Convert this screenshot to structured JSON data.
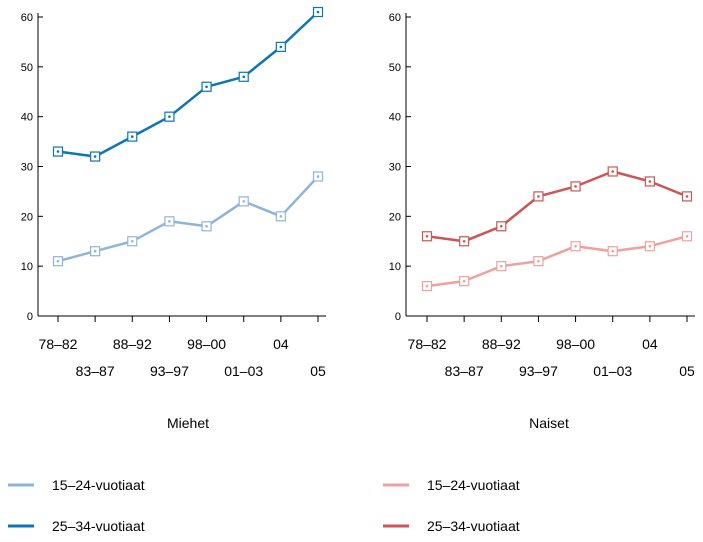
{
  "chart_data": [
    {
      "type": "line",
      "xlabel": "Miehet",
      "categories": [
        "78–82",
        "83–87",
        "88–92",
        "93–97",
        "98–00",
        "01–03",
        "04",
        "05"
      ],
      "ylim": [
        0,
        60
      ],
      "yticks": [
        0,
        10,
        20,
        30,
        40,
        50,
        60
      ],
      "grid": false,
      "series": [
        {
          "name": "15–24-vuotiaat",
          "color": "#8fb4dc",
          "values": [
            11,
            13,
            15,
            19,
            18,
            23,
            20,
            28
          ]
        },
        {
          "name": "25–34-vuotiaat",
          "color": "#0e74b4",
          "values": [
            33,
            32,
            36,
            40,
            46,
            48,
            54,
            61
          ]
        }
      ]
    },
    {
      "type": "line",
      "xlabel": "Naiset",
      "categories": [
        "78–82",
        "83–87",
        "88–92",
        "93–97",
        "98–00",
        "01–03",
        "04",
        "05"
      ],
      "ylim": [
        0,
        60
      ],
      "yticks": [
        0,
        10,
        20,
        30,
        40,
        50,
        60
      ],
      "grid": false,
      "series": [
        {
          "name": "15–24-vuotiaat",
          "color": "#f0a0a0",
          "values": [
            6,
            7,
            10,
            11,
            14,
            13,
            14,
            16
          ]
        },
        {
          "name": "25–34-vuotiaat",
          "color": "#cc5555",
          "values": [
            16,
            15,
            18,
            24,
            26,
            29,
            27,
            24
          ]
        }
      ]
    }
  ]
}
